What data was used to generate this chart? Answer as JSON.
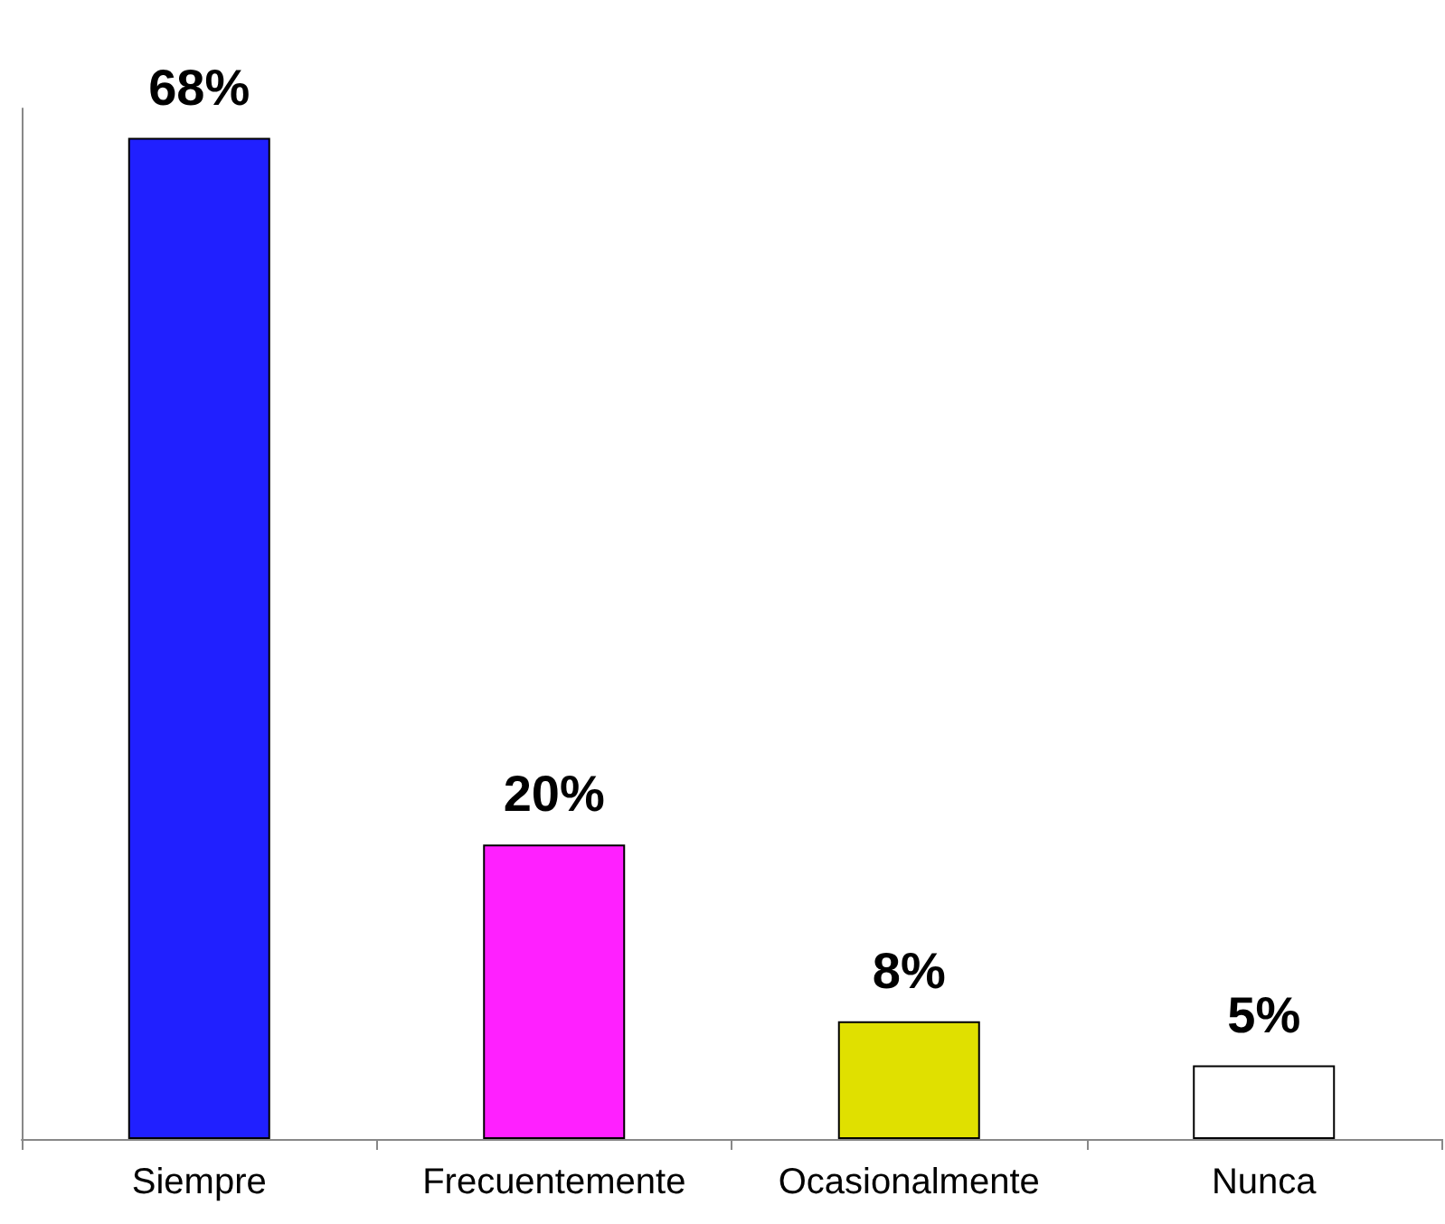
{
  "chart_data": {
    "type": "bar",
    "categories": [
      "Siempre",
      "Frecuentemente",
      "Ocasionalmente",
      "Nunca"
    ],
    "values": [
      68,
      20,
      8,
      5
    ],
    "colors": [
      "#2020ff",
      "#ff20ff",
      "#e0e000",
      "#ffffff"
    ],
    "value_labels": [
      "68%",
      "20%",
      "8%",
      "5%"
    ],
    "grid": false
  }
}
